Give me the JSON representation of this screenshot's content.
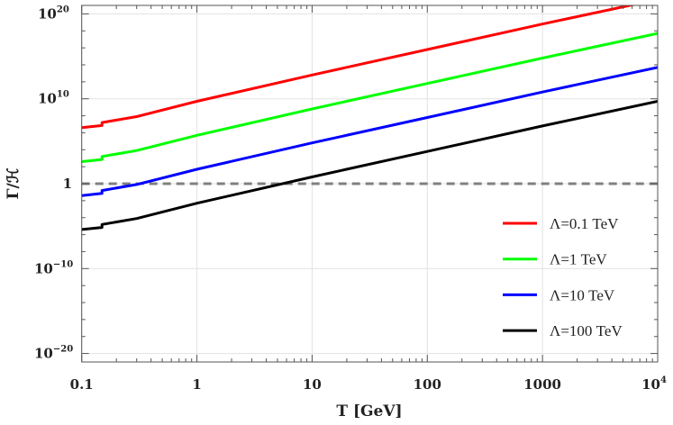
{
  "chart_data": {
    "type": "line",
    "title": "",
    "xlabel": "T [GeV]",
    "ylabel": "Γ/ℋ",
    "xscale": "log",
    "yscale": "log",
    "xlim": [
      0.1,
      10000
    ],
    "ylim": [
      1e-21,
      1e+21
    ],
    "grid": true,
    "legend_placement": "bottom-right",
    "x_ticks": [
      {
        "value": 0.1,
        "label": "0.1"
      },
      {
        "value": 1,
        "label": "1"
      },
      {
        "value": 10,
        "label": "10"
      },
      {
        "value": 100,
        "label": "100"
      },
      {
        "value": 1000,
        "label": "1000"
      },
      {
        "value": 10000,
        "label": "10",
        "sup": "4"
      }
    ],
    "y_ticks": [
      {
        "value": 1e+20,
        "label": "10",
        "sup": "20"
      },
      {
        "value": 10000000000.0,
        "label": "10",
        "sup": "10"
      },
      {
        "value": 1,
        "label": "1",
        "sup": ""
      },
      {
        "value": 1e-10,
        "label": "10",
        "sup": "−10"
      },
      {
        "value": 1e-20,
        "label": "10",
        "sup": "−20"
      }
    ],
    "x": [
      0.1,
      0.15,
      0.15,
      0.3,
      1,
      10,
      100,
      1000,
      10000
    ],
    "series": [
      {
        "name": "Λ=0.1 TeV",
        "color": "#ff0000",
        "values": [
          3980000.0,
          7080000.0,
          15800000.0,
          79400000.0,
          5010000000.0,
          6310000000000.0,
          6310000000000000.0,
          6.31e+18,
          5.01e+21
        ]
      },
      {
        "name": "Λ=1 TeV",
        "color": "#00ff00",
        "values": [
          398.0,
          708.0,
          1580.0,
          7940.0,
          501000.0,
          631000000.0,
          631000000000.0,
          631000000000000.0,
          5.01e+17
        ]
      },
      {
        "name": "Λ=10 TeV",
        "color": "#0000ff",
        "values": [
          0.0398,
          0.0708,
          0.158,
          0.794,
          50.1,
          63100.0,
          63100000.0,
          63100000000.0,
          50100000000000.0
        ]
      },
      {
        "name": "Λ=100 TeV",
        "color": "#000000",
        "values": [
          3.98e-06,
          7.08e-06,
          1.58e-05,
          7.94e-05,
          0.00501,
          6.31,
          6310.0,
          6310000.0,
          5010000000.0
        ]
      }
    ],
    "reference_line": {
      "y": 1,
      "style": "dashed",
      "color": "#808080"
    }
  }
}
